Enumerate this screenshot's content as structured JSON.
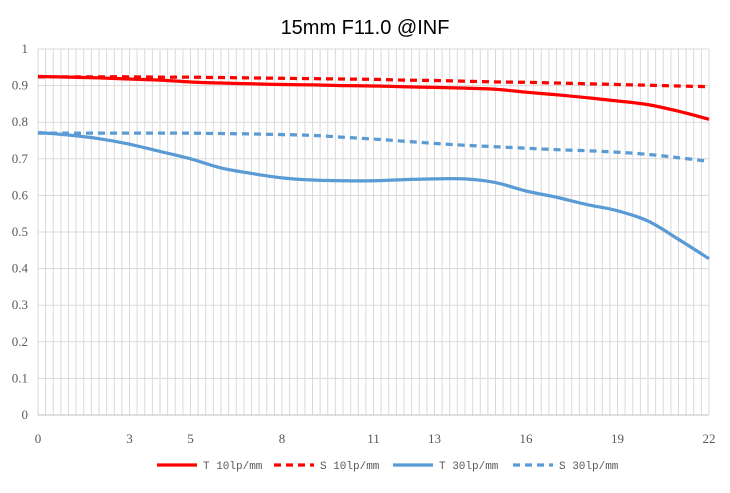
{
  "chart_data": {
    "type": "line",
    "title": "15mm F11.0 @INF",
    "xlabel": "",
    "ylabel": "",
    "xlim": [
      0,
      22
    ],
    "ylim": [
      0,
      1
    ],
    "x_ticks": [
      "0",
      "3",
      "5",
      "8",
      "11",
      "13",
      "16",
      "19",
      "22"
    ],
    "y_ticks": [
      "0",
      "0.1",
      "0.2",
      "0.3",
      "0.4",
      "0.5",
      "0.6",
      "0.7",
      "0.8",
      "0.9",
      "1"
    ],
    "grid": true,
    "legend_position": "bottom",
    "x": [
      0,
      1,
      2,
      3,
      4,
      5,
      6,
      7,
      8,
      9,
      10,
      11,
      12,
      13,
      14,
      15,
      16,
      17,
      18,
      19,
      20,
      21,
      22
    ],
    "series": [
      {
        "name": "T 10lp/mm",
        "color": "#ff0000",
        "dash": "solid",
        "values": [
          0.925,
          0.923,
          0.921,
          0.918,
          0.915,
          0.91,
          0.907,
          0.905,
          0.903,
          0.902,
          0.9,
          0.899,
          0.897,
          0.895,
          0.893,
          0.89,
          0.882,
          0.875,
          0.867,
          0.858,
          0.848,
          0.83,
          0.808
        ]
      },
      {
        "name": "S 10lp/mm",
        "color": "#ff0000",
        "dash": "dashed",
        "values": [
          0.924,
          0.924,
          0.924,
          0.924,
          0.923,
          0.923,
          0.922,
          0.921,
          0.92,
          0.919,
          0.918,
          0.917,
          0.915,
          0.914,
          0.912,
          0.91,
          0.909,
          0.907,
          0.905,
          0.903,
          0.901,
          0.899,
          0.897
        ]
      },
      {
        "name": "T 30lp/mm",
        "color": "#5b9bd5",
        "dash": "solid",
        "values": [
          0.772,
          0.765,
          0.755,
          0.74,
          0.72,
          0.7,
          0.675,
          0.66,
          0.648,
          0.642,
          0.64,
          0.64,
          0.643,
          0.645,
          0.645,
          0.635,
          0.612,
          0.595,
          0.575,
          0.558,
          0.53,
          0.48,
          0.427
        ]
      },
      {
        "name": "S 30lp/mm",
        "color": "#5b9bd5",
        "dash": "dashed",
        "values": [
          0.77,
          0.77,
          0.77,
          0.77,
          0.77,
          0.77,
          0.769,
          0.768,
          0.766,
          0.764,
          0.759,
          0.754,
          0.748,
          0.742,
          0.737,
          0.733,
          0.729,
          0.725,
          0.722,
          0.718,
          0.712,
          0.703,
          0.693
        ]
      }
    ]
  }
}
